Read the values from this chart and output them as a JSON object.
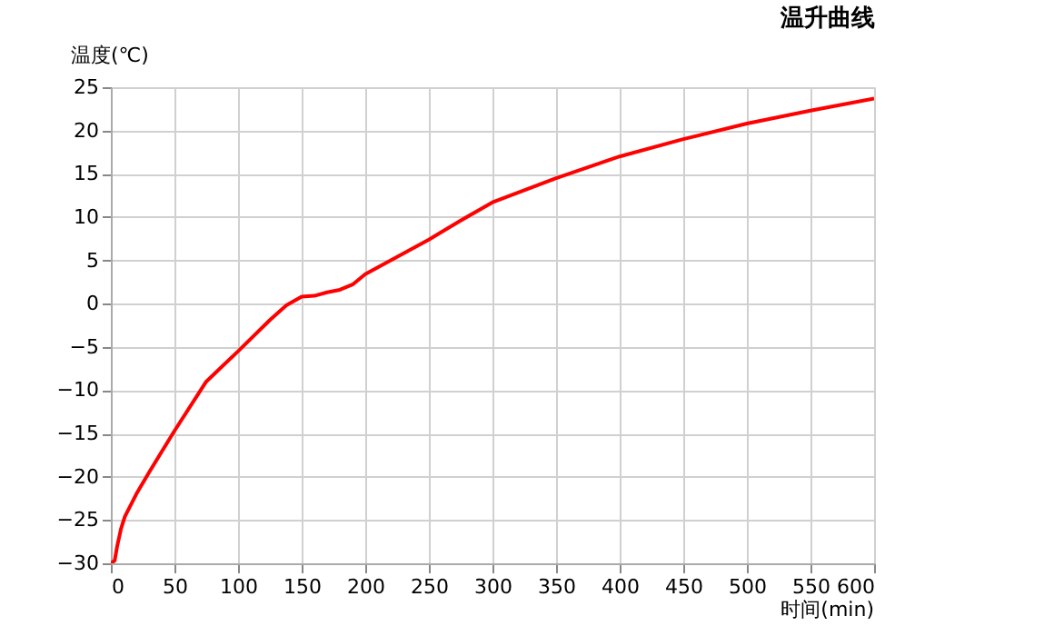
{
  "chart_data": {
    "type": "line",
    "title": "温升曲线",
    "xlabel": "时间(min)",
    "ylabel": "温度(℃)",
    "x": [
      0,
      3,
      5,
      8,
      11,
      20,
      30,
      50,
      75,
      100,
      125,
      138,
      150,
      160,
      170,
      180,
      190,
      200,
      225,
      250,
      275,
      300,
      350,
      400,
      450,
      500,
      550,
      600
    ],
    "series": [
      {
        "color": "#ff0000",
        "values": [
          -30,
          -29.7,
          -28,
          -26,
          -24.6,
          -22,
          -19.5,
          -14.7,
          -9,
          -5.5,
          -1.9,
          -0.2,
          0.8,
          0.9,
          1.3,
          1.6,
          2.2,
          3.4,
          5.4,
          7.4,
          9.6,
          11.7,
          14.5,
          17,
          19,
          20.8,
          22.3,
          23.7
        ]
      }
    ],
    "xlim": [
      0,
      600
    ],
    "xticks": [
      0,
      50,
      100,
      150,
      200,
      250,
      300,
      350,
      400,
      450,
      500,
      550,
      600
    ],
    "ylim": [
      -30,
      25
    ],
    "yticks": [
      -30,
      -25,
      -20,
      -15,
      -10,
      -5,
      0,
      5,
      10,
      15,
      20,
      25
    ],
    "grid": true,
    "legend": false,
    "marker": "none",
    "line_style": "solid"
  }
}
